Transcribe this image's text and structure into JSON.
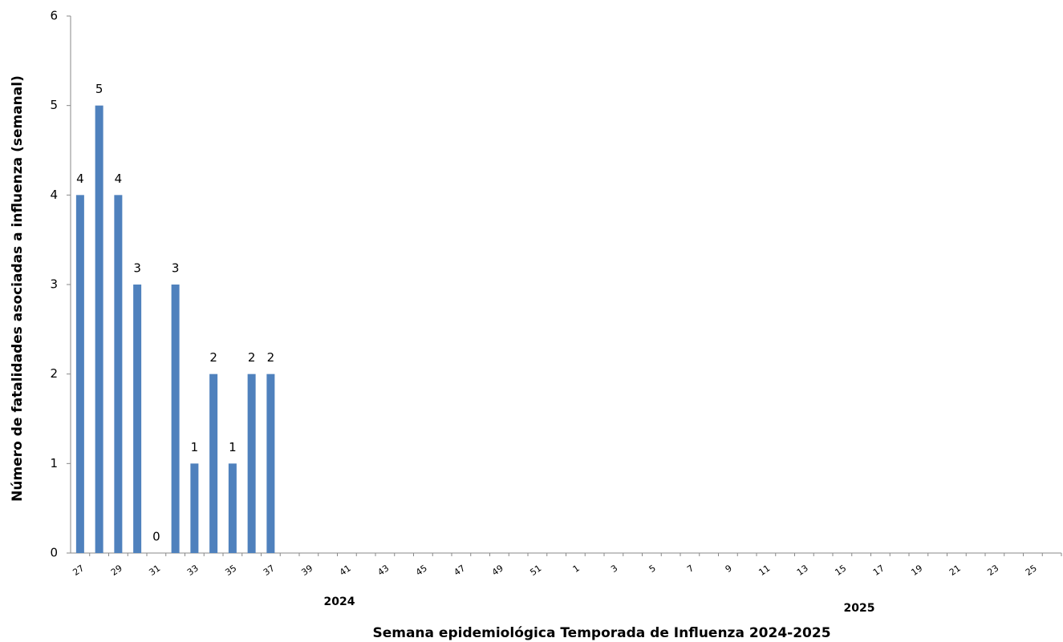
{
  "chart_data": {
    "type": "bar",
    "y_label": "Número de fatalidades asociadas a influenza (semanal)",
    "x_label": "Semana epidemiológica Temporada de Influenza 2024-2025",
    "annotations": [
      "2024",
      "2025"
    ],
    "categories": [
      "27",
      null,
      "29",
      null,
      "31",
      null,
      "33",
      null,
      "35",
      null,
      "37",
      null,
      "39",
      null,
      "41",
      null,
      "43",
      null,
      "45",
      null,
      "47",
      null,
      "49",
      null,
      "51",
      null,
      "1",
      null,
      "3",
      null,
      "5",
      null,
      "7",
      null,
      "9",
      null,
      "11",
      null,
      "13",
      null,
      "15",
      null,
      "17",
      null,
      "19",
      null,
      "21",
      null,
      "23",
      null,
      "25",
      null
    ],
    "values": [
      4,
      5,
      4,
      3,
      0,
      3,
      1,
      2,
      1,
      2,
      2,
      null,
      null,
      null,
      null,
      null,
      null,
      null,
      null,
      null,
      null,
      null,
      null,
      null,
      null,
      null,
      null,
      null,
      null,
      null,
      null,
      null,
      null,
      null,
      null,
      null,
      null,
      null,
      null,
      null,
      null,
      null,
      null,
      null,
      null,
      null,
      null,
      null,
      null,
      null,
      null,
      null
    ],
    "color": "#4f81bd",
    "ylim": [
      0,
      6
    ],
    "yticks": [
      0,
      1,
      2,
      3,
      4,
      5,
      6
    ],
    "grid": false
  }
}
